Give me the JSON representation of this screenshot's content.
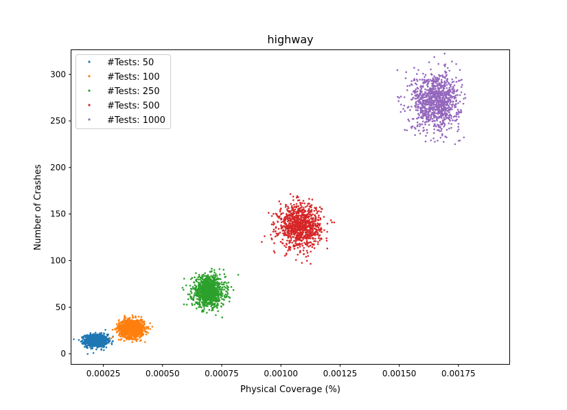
{
  "chart_data": {
    "type": "scatter",
    "title": "highway",
    "xlabel": "Physical Coverage  (%)",
    "ylabel": "Number of Crashes",
    "xlim": [
      0.000115,
      0.001965
    ],
    "ylim": [
      -11,
      326
    ],
    "x_ticks": [
      0.00025,
      0.0005,
      0.00075,
      0.001,
      0.00125,
      0.0015,
      0.00175
    ],
    "x_tick_labels": [
      "0.00025",
      "0.00050",
      "0.00075",
      "0.00100",
      "0.00125",
      "0.00150",
      "0.00175"
    ],
    "y_ticks": [
      0,
      50,
      100,
      150,
      200,
      250,
      300
    ],
    "y_tick_labels": [
      "0",
      "50",
      "100",
      "150",
      "200",
      "250",
      "300"
    ],
    "grid": false,
    "legend_position": "top-left",
    "series": [
      {
        "name": "#Tests: 50",
        "color": "#1f77b4",
        "center": [
          0.00022,
          14
        ],
        "spread": [
          2.35e-05,
          3.4
        ],
        "n": 1000
      },
      {
        "name": "#Tests: 100",
        "color": "#ff7f0e",
        "center": [
          0.00037,
          27
        ],
        "spread": [
          2.7e-05,
          5.0
        ],
        "n": 1000
      },
      {
        "name": "#Tests: 250",
        "color": "#2ca02c",
        "center": [
          0.000695,
          67
        ],
        "spread": [
          3.45e-05,
          8.2
        ],
        "n": 1000
      },
      {
        "name": "#Tests: 500",
        "color": "#d62728",
        "center": [
          0.00108,
          137
        ],
        "spread": [
          4.45e-05,
          11.5
        ],
        "n": 1000
      },
      {
        "name": "#Tests: 1000",
        "color": "#9467bd",
        "center": [
          0.001655,
          271
        ],
        "spread": [
          5.05e-05,
          15.5
        ],
        "n": 1000
      }
    ]
  }
}
